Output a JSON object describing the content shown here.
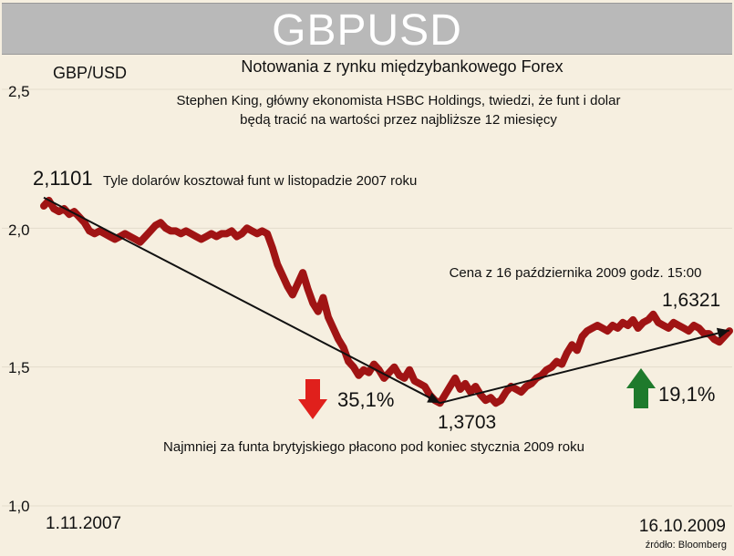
{
  "header": {
    "title": "GBPUSD"
  },
  "chart_data": {
    "type": "line",
    "title": "Notowania z rynku międzybankowego Forex",
    "ylabel": "GBP/USD",
    "subtitle_lines": [
      "Stephen King, główny ekonomista HSBC Holdings, twiedzi, że funt i dolar",
      "będą tracić na wartości przez najbliższe 12 miesięcy"
    ],
    "ylim": [
      1.0,
      2.5
    ],
    "yticks": [
      "1,0",
      "1,5",
      "2,0",
      "2,5"
    ],
    "ytick_values": [
      1.0,
      1.5,
      2.0,
      2.5
    ],
    "x_start_label": "1.11.2007",
    "x_end_label": "16.10.2009",
    "series": [
      {
        "name": "GBP/USD",
        "color": "#a01414",
        "values": [
          2.08,
          2.1,
          2.07,
          2.06,
          2.07,
          2.05,
          2.06,
          2.04,
          2.02,
          1.99,
          1.98,
          1.99,
          1.98,
          1.97,
          1.96,
          1.97,
          1.98,
          1.97,
          1.96,
          1.95,
          1.97,
          1.99,
          2.01,
          2.02,
          2.0,
          1.99,
          1.99,
          1.98,
          1.99,
          1.98,
          1.97,
          1.96,
          1.97,
          1.98,
          1.97,
          1.98,
          1.98,
          1.99,
          1.97,
          1.98,
          2.0,
          1.99,
          1.98,
          1.99,
          1.98,
          1.93,
          1.87,
          1.83,
          1.79,
          1.76,
          1.8,
          1.84,
          1.78,
          1.73,
          1.7,
          1.75,
          1.68,
          1.64,
          1.6,
          1.57,
          1.52,
          1.5,
          1.47,
          1.49,
          1.48,
          1.51,
          1.49,
          1.46,
          1.48,
          1.5,
          1.47,
          1.46,
          1.49,
          1.45,
          1.44,
          1.43,
          1.4,
          1.38,
          1.37,
          1.4,
          1.43,
          1.46,
          1.42,
          1.44,
          1.41,
          1.43,
          1.4,
          1.38,
          1.39,
          1.37,
          1.38,
          1.41,
          1.43,
          1.42,
          1.41,
          1.43,
          1.44,
          1.46,
          1.47,
          1.49,
          1.5,
          1.52,
          1.51,
          1.55,
          1.58,
          1.56,
          1.61,
          1.63,
          1.64,
          1.65,
          1.64,
          1.63,
          1.65,
          1.64,
          1.66,
          1.65,
          1.67,
          1.64,
          1.66,
          1.67,
          1.69,
          1.66,
          1.65,
          1.64,
          1.66,
          1.65,
          1.64,
          1.63,
          1.65,
          1.64,
          1.62,
          1.62,
          1.6,
          1.59,
          1.61,
          1.63
        ]
      }
    ],
    "trend_lines": [
      {
        "from": {
          "index": 0,
          "value": 2.1101
        },
        "to": {
          "index": 78,
          "value": 1.3703
        }
      },
      {
        "from": {
          "index": 78,
          "value": 1.3703
        },
        "to": {
          "index": 135,
          "value": 1.6321
        }
      }
    ],
    "annotations": {
      "start_value": "2,1101",
      "start_note": "Tyle dolarów kosztował funt w listopadzie 2007 roku",
      "min_value": "1,3703",
      "min_note": "Najmniej za funta brytyjskiego płacono pod koniec stycznia 2009 roku",
      "end_value": "1,6321",
      "price_note": "Cena z 16 października 2009 godz. 15:00",
      "decline_pct": "35,1%",
      "rise_pct": "19,1%"
    },
    "colors": {
      "down_arrow": "#e0201c",
      "up_arrow": "#1e7a2c",
      "line": "#a01414"
    },
    "source": "źródło: Bloomberg"
  }
}
